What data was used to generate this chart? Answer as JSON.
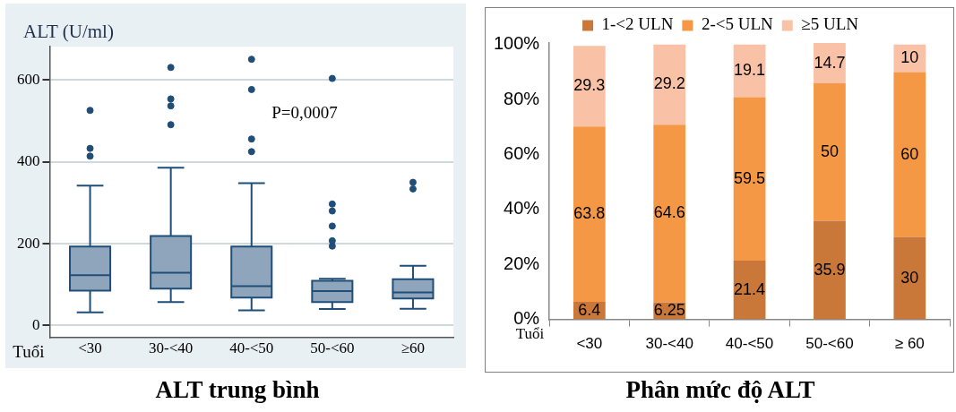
{
  "chart_data": [
    {
      "type": "box",
      "title": "ALT trung bình",
      "ylabel": "ALT (U/ml)",
      "xlabel": "Tuổi",
      "categories": [
        "<30",
        "30-<40",
        "40-<50",
        "50-<60",
        "≥60"
      ],
      "color": "#8fa5bc",
      "boxes": [
        {
          "low": 32,
          "q1": 85,
          "median": 123,
          "q3": 193,
          "high": 342,
          "outliers": [
            526,
            433,
            414
          ]
        },
        {
          "low": 57,
          "q1": 90,
          "median": 129,
          "q3": 219,
          "high": 386,
          "outliers": [
            631,
            554,
            537,
            491
          ]
        },
        {
          "low": 37,
          "q1": 68,
          "median": 96,
          "q3": 193,
          "high": 348,
          "outliers": [
            651,
            577,
            456,
            425
          ]
        },
        {
          "low": 40,
          "q1": 57,
          "median": 84,
          "q3": 109,
          "high": 114,
          "outliers": [
            604,
            297,
            280,
            243,
            207,
            194
          ]
        },
        {
          "low": 41,
          "q1": 66,
          "median": 81,
          "q3": 113,
          "high": 146,
          "outliers": [
            350,
            334
          ]
        }
      ],
      "ylim": [
        -29,
        682
      ],
      "yticks": [
        0,
        200,
        400,
        600
      ],
      "grid": "y",
      "legend": false,
      "annotations": [
        "P=0,0007"
      ]
    },
    {
      "type": "bar",
      "stacked": true,
      "title": "Phân mức độ ALT",
      "xlabel": "Tuổi",
      "categories": [
        "<30",
        "30-<40",
        "40-<50",
        "50-<60",
        "≥ 60"
      ],
      "series": [
        {
          "name": "1-<2 ULN",
          "color": "#c9783a",
          "values": [
            6.4,
            6.25,
            21.4,
            35.9,
            30
          ]
        },
        {
          "name": "2-<5 ULN",
          "color": "#f59846",
          "values": [
            63.8,
            64.6,
            59.5,
            50,
            60
          ]
        },
        {
          "name": "≥5 ULN",
          "color": "#f9c2a6",
          "values": [
            29.3,
            29.2,
            19.1,
            14.7,
            10
          ]
        }
      ],
      "ylim": [
        0,
        100.6
      ],
      "yticks": [
        {
          "value": 0,
          "label": "0%"
        },
        {
          "value": 20,
          "label": "20%"
        },
        {
          "value": 40,
          "label": "40%"
        },
        {
          "value": 60,
          "label": "60%"
        },
        {
          "value": 80,
          "label": "80%"
        },
        {
          "value": 100,
          "label": "100%"
        }
      ],
      "grid": false,
      "legend": "top",
      "data_labels": true
    }
  ]
}
